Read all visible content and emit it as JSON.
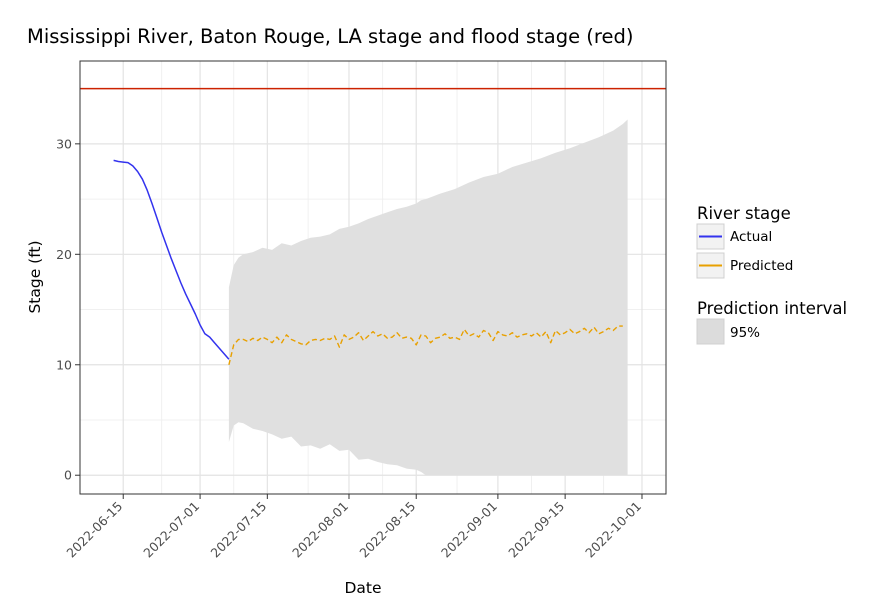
{
  "chart_data": {
    "type": "line",
    "title": "Mississippi River, Baton Rouge, LA stage and flood stage (red)",
    "xlabel": "Date",
    "ylabel": "Stage (ft)",
    "x_ticks": [
      "2022-06-15",
      "2022-07-01",
      "2022-07-15",
      "2022-08-01",
      "2022-08-15",
      "2022-09-01",
      "2022-09-15",
      "2022-10-01"
    ],
    "y_ticks": [
      0,
      10,
      20,
      30
    ],
    "xlim": [
      "2022-06-06",
      "2022-10-06"
    ],
    "ylim": [
      -1.7,
      37.5
    ],
    "grid": true,
    "legend_position": "right",
    "flood_stage": {
      "value": 35,
      "color": "#cc2200"
    },
    "legend": {
      "river_stage_title": "River stage",
      "prediction_title": "Prediction interval",
      "entries": [
        {
          "label": "Actual",
          "color": "#3333ee"
        },
        {
          "label": "Predicted",
          "color": "#e8a000"
        },
        {
          "label": "95%",
          "color": "#dcdcdc"
        }
      ]
    },
    "series": [
      {
        "name": "Actual",
        "color": "#3333ee",
        "points": [
          [
            "2022-06-13",
            28.5
          ],
          [
            "2022-06-14",
            28.4
          ],
          [
            "2022-06-15",
            28.35
          ],
          [
            "2022-06-16",
            28.3
          ],
          [
            "2022-06-17",
            28.0
          ],
          [
            "2022-06-18",
            27.5
          ],
          [
            "2022-06-19",
            26.8
          ],
          [
            "2022-06-20",
            25.8
          ],
          [
            "2022-06-21",
            24.6
          ],
          [
            "2022-06-22",
            23.3
          ],
          [
            "2022-06-23",
            22.0
          ],
          [
            "2022-06-24",
            20.8
          ],
          [
            "2022-06-25",
            19.6
          ],
          [
            "2022-06-26",
            18.5
          ],
          [
            "2022-06-27",
            17.4
          ],
          [
            "2022-06-28",
            16.4
          ],
          [
            "2022-06-29",
            15.5
          ],
          [
            "2022-06-30",
            14.6
          ],
          [
            "2022-07-01",
            13.6
          ],
          [
            "2022-07-02",
            12.8
          ],
          [
            "2022-07-03",
            12.5
          ],
          [
            "2022-07-04",
            12.0
          ],
          [
            "2022-07-05",
            11.5
          ],
          [
            "2022-07-06",
            11.0
          ],
          [
            "2022-07-07",
            10.5
          ]
        ]
      },
      {
        "name": "Predicted",
        "color": "#e8a000",
        "points": [
          [
            "2022-07-07",
            10.0
          ],
          [
            "2022-07-08",
            11.8
          ],
          [
            "2022-07-09",
            12.3
          ],
          [
            "2022-07-10",
            12.3
          ],
          [
            "2022-07-11",
            12.1
          ],
          [
            "2022-07-12",
            12.4
          ],
          [
            "2022-07-13",
            12.2
          ],
          [
            "2022-07-14",
            12.5
          ],
          [
            "2022-07-15",
            12.3
          ],
          [
            "2022-07-16",
            12.0
          ],
          [
            "2022-07-17",
            12.5
          ],
          [
            "2022-07-18",
            12.0
          ],
          [
            "2022-07-19",
            12.7
          ],
          [
            "2022-07-20",
            12.3
          ],
          [
            "2022-07-21",
            12.1
          ],
          [
            "2022-07-22",
            11.9
          ],
          [
            "2022-07-23",
            11.8
          ],
          [
            "2022-07-24",
            12.2
          ],
          [
            "2022-07-25",
            12.3
          ],
          [
            "2022-07-26",
            12.2
          ],
          [
            "2022-07-27",
            12.4
          ],
          [
            "2022-07-28",
            12.3
          ],
          [
            "2022-07-29",
            12.6
          ],
          [
            "2022-07-30",
            11.6
          ],
          [
            "2022-07-31",
            12.7
          ],
          [
            "2022-08-01",
            12.3
          ],
          [
            "2022-08-02",
            12.5
          ],
          [
            "2022-08-03",
            12.9
          ],
          [
            "2022-08-04",
            12.2
          ],
          [
            "2022-08-05",
            12.6
          ],
          [
            "2022-08-06",
            13.0
          ],
          [
            "2022-08-07",
            12.6
          ],
          [
            "2022-08-08",
            12.8
          ],
          [
            "2022-08-09",
            12.4
          ],
          [
            "2022-08-10",
            12.5
          ],
          [
            "2022-08-11",
            12.9
          ],
          [
            "2022-08-12",
            12.4
          ],
          [
            "2022-08-13",
            12.5
          ],
          [
            "2022-08-14",
            12.4
          ],
          [
            "2022-08-15",
            11.8
          ],
          [
            "2022-08-16",
            12.7
          ],
          [
            "2022-08-17",
            12.6
          ],
          [
            "2022-08-18",
            12.0
          ],
          [
            "2022-08-19",
            12.4
          ],
          [
            "2022-08-20",
            12.5
          ],
          [
            "2022-08-21",
            12.8
          ],
          [
            "2022-08-22",
            12.4
          ],
          [
            "2022-08-23",
            12.5
          ],
          [
            "2022-08-24",
            12.3
          ],
          [
            "2022-08-25",
            13.2
          ],
          [
            "2022-08-26",
            12.6
          ],
          [
            "2022-08-27",
            12.8
          ],
          [
            "2022-08-28",
            12.5
          ],
          [
            "2022-08-29",
            13.1
          ],
          [
            "2022-08-30",
            12.9
          ],
          [
            "2022-08-31",
            12.2
          ],
          [
            "2022-09-01",
            13.0
          ],
          [
            "2022-09-02",
            12.7
          ],
          [
            "2022-09-03",
            12.6
          ],
          [
            "2022-09-04",
            12.9
          ],
          [
            "2022-09-05",
            12.5
          ],
          [
            "2022-09-06",
            12.7
          ],
          [
            "2022-09-07",
            12.8
          ],
          [
            "2022-09-08",
            12.6
          ],
          [
            "2022-09-09",
            12.9
          ],
          [
            "2022-09-10",
            12.5
          ],
          [
            "2022-09-11",
            13.0
          ],
          [
            "2022-09-12",
            12.0
          ],
          [
            "2022-09-13",
            13.1
          ],
          [
            "2022-09-14",
            12.7
          ],
          [
            "2022-09-15",
            12.9
          ],
          [
            "2022-09-16",
            13.2
          ],
          [
            "2022-09-17",
            12.8
          ],
          [
            "2022-09-18",
            13.0
          ],
          [
            "2022-09-19",
            13.3
          ],
          [
            "2022-09-20",
            12.9
          ],
          [
            "2022-09-21",
            13.4
          ],
          [
            "2022-09-22",
            12.8
          ],
          [
            "2022-09-23",
            13.0
          ],
          [
            "2022-09-24",
            13.3
          ],
          [
            "2022-09-25",
            13.1
          ],
          [
            "2022-09-26",
            13.5
          ],
          [
            "2022-09-27",
            13.5
          ]
        ]
      }
    ],
    "interval": {
      "name": "95%",
      "color": "#e0e0e0",
      "points": [
        [
          "2022-07-07",
          3.0,
          17.0
        ],
        [
          "2022-07-08",
          4.5,
          19.0
        ],
        [
          "2022-07-09",
          4.8,
          19.7
        ],
        [
          "2022-07-10",
          4.7,
          20.0
        ],
        [
          "2022-07-12",
          4.2,
          20.2
        ],
        [
          "2022-07-14",
          4.0,
          20.6
        ],
        [
          "2022-07-16",
          3.7,
          20.4
        ],
        [
          "2022-07-18",
          3.3,
          21.0
        ],
        [
          "2022-07-20",
          3.5,
          20.8
        ],
        [
          "2022-07-22",
          2.6,
          21.2
        ],
        [
          "2022-07-24",
          2.7,
          21.5
        ],
        [
          "2022-07-26",
          2.4,
          21.6
        ],
        [
          "2022-07-28",
          2.8,
          21.8
        ],
        [
          "2022-07-30",
          2.2,
          22.3
        ],
        [
          "2022-08-01",
          2.3,
          22.5
        ],
        [
          "2022-08-03",
          1.4,
          22.8
        ],
        [
          "2022-08-05",
          1.5,
          23.2
        ],
        [
          "2022-08-07",
          1.2,
          23.5
        ],
        [
          "2022-08-09",
          1.0,
          23.8
        ],
        [
          "2022-08-11",
          0.9,
          24.1
        ],
        [
          "2022-08-13",
          0.6,
          24.3
        ],
        [
          "2022-08-15",
          0.5,
          24.6
        ],
        [
          "2022-08-16",
          0.3,
          24.9
        ],
        [
          "2022-08-17",
          0.0,
          25.0
        ],
        [
          "2022-08-20",
          0.0,
          25.5
        ],
        [
          "2022-08-23",
          0.0,
          25.9
        ],
        [
          "2022-08-26",
          0.0,
          26.5
        ],
        [
          "2022-08-29",
          0.0,
          27.0
        ],
        [
          "2022-09-01",
          0.0,
          27.3
        ],
        [
          "2022-09-04",
          0.0,
          27.9
        ],
        [
          "2022-09-07",
          0.0,
          28.3
        ],
        [
          "2022-09-10",
          0.0,
          28.7
        ],
        [
          "2022-09-13",
          0.0,
          29.2
        ],
        [
          "2022-09-16",
          0.0,
          29.6
        ],
        [
          "2022-09-19",
          0.0,
          30.1
        ],
        [
          "2022-09-22",
          0.0,
          30.6
        ],
        [
          "2022-09-25",
          0.0,
          31.2
        ],
        [
          "2022-09-27",
          0.0,
          31.8
        ],
        [
          "2022-09-28",
          0.0,
          32.2
        ]
      ]
    }
  }
}
